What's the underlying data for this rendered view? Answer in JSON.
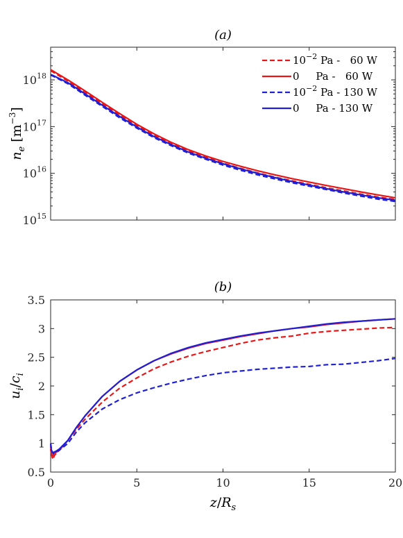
{
  "chart_data": [
    {
      "type": "line",
      "title": "(a)",
      "ylabel_base": "n",
      "ylabel_sub": "e",
      "ylabel_unit": "[m",
      "ylabel_exp": "−3",
      "ylabel_close": "]",
      "yscale": "log",
      "xlim": [
        0,
        20
      ],
      "ylim": [
        1000000000000000.0,
        5e+18
      ],
      "yticks": [
        1000000000000000.0,
        1e+16,
        1e+17,
        1e+18
      ],
      "ytick_base": "10",
      "ytick_exps": [
        "15",
        "16",
        "17",
        "18"
      ],
      "grid": false,
      "legend_position": "top-right",
      "legend": [
        {
          "mantissa": "10",
          "exp": "−2",
          "rest": " Pa -   60 W",
          "color": "#e81616",
          "dash": true
        },
        {
          "mantissa": "0",
          "exp": "",
          "rest": "     Pa -   60 W",
          "color": "#e81616",
          "dash": false
        },
        {
          "mantissa": "10",
          "exp": "−2",
          "rest": " Pa - 130 W",
          "color": "#1f1fd6",
          "dash": true
        },
        {
          "mantissa": "0",
          "exp": "",
          "rest": "     Pa - 130 W",
          "color": "#1f1fd6",
          "dash": false
        }
      ],
      "x": [
        0,
        0.1,
        0.3,
        1,
        2,
        3,
        4,
        5,
        6,
        7,
        8,
        9,
        10,
        11,
        12,
        13,
        14,
        15,
        16,
        17,
        18,
        19,
        20
      ],
      "series": [
        {
          "name": "10^-2 Pa - 60 W",
          "color": "#e81616",
          "dash": true,
          "values": [
            1.55e+18,
            1.5e+18,
            1.35e+18,
            9.5e+17,
            5.4e+17,
            3.1e+17,
            1.75e+17,
            1.05e+17,
            6.5e+16,
            4.3e+16,
            3e+16,
            2.2e+16,
            1.65e+16,
            1.28e+16,
            1.02e+16,
            8300000000000000.0,
            6900000000000000.0,
            5800000000000000.0,
            4900000000000000.0,
            4200000000000000.0,
            3600000000000000.0,
            3100000000000000.0,
            2750000000000000.0
          ]
        },
        {
          "name": "0 Pa - 60 W",
          "color": "#e81616",
          "dash": false,
          "values": [
            1.65e+18,
            1.58e+18,
            1.42e+18,
            1e+18,
            5.8e+17,
            3.3e+17,
            1.9e+17,
            1.12e+17,
            7e+16,
            4.6e+16,
            3.2e+16,
            2.35e+16,
            1.8e+16,
            1.42e+16,
            1.14e+16,
            9300000000000000.0,
            7700000000000000.0,
            6500000000000000.0,
            5500000000000000.0,
            4700000000000000.0,
            4000000000000000.0,
            3450000000000000.0,
            3000000000000000.0
          ]
        },
        {
          "name": "10^-2 Pa - 130 W",
          "color": "#1f1fd6",
          "dash": true,
          "values": [
            1.25e+18,
            1.22e+18,
            1.12e+18,
            8.3e+17,
            4.7e+17,
            2.7e+17,
            1.55e+17,
            9.3e+16,
            5.8e+16,
            3.9e+16,
            2.7e+16,
            2e+16,
            1.5e+16,
            1.17e+16,
            9300000000000000.0,
            7600000000000000.0,
            6300000000000000.0,
            5300000000000000.0,
            4500000000000000.0,
            3800000000000000.0,
            3250000000000000.0,
            2800000000000000.0,
            2500000000000000.0
          ]
        },
        {
          "name": "0 Pa - 130 W",
          "color": "#1f1fd6",
          "dash": false,
          "values": [
            1.3e+18,
            1.26e+18,
            1.16e+18,
            8.7e+17,
            5e+17,
            2.85e+17,
            1.65e+17,
            9.8e+16,
            6.1e+16,
            4.1e+16,
            2.85e+16,
            2.1e+16,
            1.6e+16,
            1.25e+16,
            1e+16,
            8100000000000000.0,
            6700000000000000.0,
            5600000000000000.0,
            4700000000000000.0,
            4000000000000000.0,
            3450000000000000.0,
            3000000000000000.0,
            2650000000000000.0
          ]
        }
      ]
    },
    {
      "type": "line",
      "title": "(b)",
      "ylabel_num": "u",
      "ylabel_num_sub": "i",
      "ylabel_den": "c",
      "ylabel_den_sub": "i",
      "xlabel_num": "z",
      "xlabel_den": "R",
      "xlabel_den_sub": "s",
      "xlim": [
        0,
        20
      ],
      "ylim": [
        0.5,
        3.5
      ],
      "xticks": [
        0,
        5,
        10,
        15,
        20
      ],
      "xtick_labels": [
        "0",
        "5",
        "10",
        "15",
        "20"
      ],
      "yticks": [
        0.5,
        1,
        1.5,
        2,
        2.5,
        3,
        3.5
      ],
      "ytick_labels": [
        "0.5",
        "1",
        "1.5",
        "2",
        "2.5",
        "3",
        "3.5"
      ],
      "grid": false,
      "x": [
        0,
        0.05,
        0.1,
        0.15,
        0.2,
        0.3,
        0.5,
        1,
        1.5,
        2,
        3,
        4,
        5,
        6,
        7,
        8,
        9,
        10,
        11,
        12,
        13,
        14,
        15,
        16,
        17,
        18,
        19,
        20
      ],
      "series": [
        {
          "name": "10^-2 Pa - 60 W",
          "color": "#e81616",
          "dash": true,
          "values": [
            0.95,
            0.82,
            0.75,
            0.72,
            0.78,
            0.82,
            0.88,
            1.05,
            1.25,
            1.42,
            1.72,
            1.96,
            2.14,
            2.3,
            2.42,
            2.52,
            2.6,
            2.67,
            2.74,
            2.8,
            2.84,
            2.87,
            2.92,
            2.95,
            2.97,
            2.99,
            3.01,
            3.02
          ]
        },
        {
          "name": "0 Pa - 60 W",
          "color": "#e81616",
          "dash": false,
          "values": [
            0.9,
            0.8,
            0.78,
            0.8,
            0.83,
            0.84,
            0.88,
            1.05,
            1.28,
            1.48,
            1.82,
            2.08,
            2.28,
            2.44,
            2.56,
            2.66,
            2.74,
            2.8,
            2.86,
            2.91,
            2.96,
            3.0,
            3.03,
            3.07,
            3.1,
            3.13,
            3.15,
            3.17
          ]
        },
        {
          "name": "10^-2 Pa - 130 W",
          "color": "#1f1fd6",
          "dash": true,
          "values": [
            1.0,
            0.9,
            0.85,
            0.82,
            0.84,
            0.85,
            0.88,
            1.0,
            1.2,
            1.36,
            1.6,
            1.76,
            1.88,
            1.97,
            2.05,
            2.12,
            2.18,
            2.23,
            2.26,
            2.29,
            2.31,
            2.33,
            2.34,
            2.37,
            2.38,
            2.41,
            2.44,
            2.48
          ]
        },
        {
          "name": "0 Pa - 130 W",
          "color": "#1f1fd6",
          "dash": false,
          "values": [
            0.98,
            0.88,
            0.84,
            0.83,
            0.85,
            0.86,
            0.9,
            1.05,
            1.28,
            1.48,
            1.82,
            2.08,
            2.28,
            2.44,
            2.57,
            2.67,
            2.75,
            2.81,
            2.87,
            2.92,
            2.96,
            3.0,
            3.04,
            3.08,
            3.11,
            3.13,
            3.15,
            3.17
          ]
        }
      ]
    }
  ]
}
